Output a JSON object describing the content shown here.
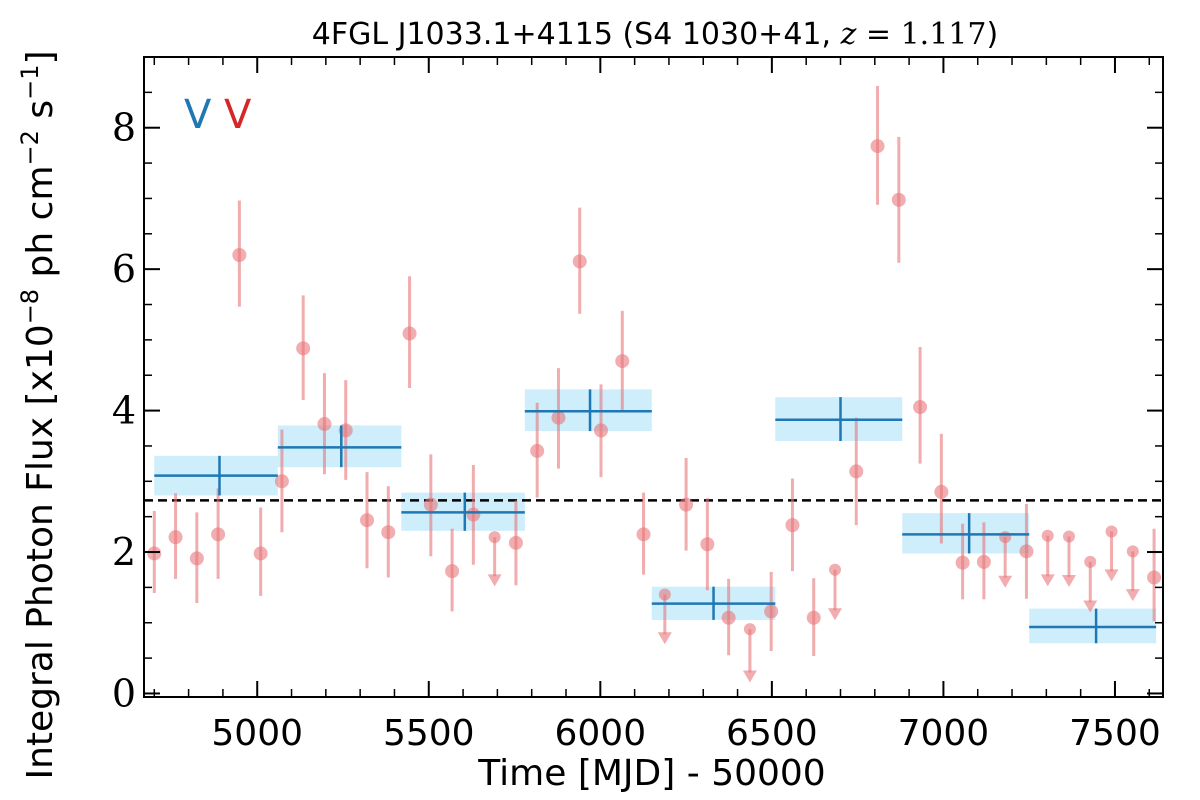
{
  "chart_data": {
    "type": "scatter",
    "title": {
      "prefix": "4FGL J1033.1+4115 (S4 1030+41, ",
      "z_symbol": "z",
      "equals": " = ",
      "z_value": "1.117",
      "suffix": ")"
    },
    "xlabel": "Time [MJD] - 50000",
    "ylabel": {
      "main": "Integral Photon Flux [x10",
      "exp1": "−8",
      "mid": " ph cm",
      "exp2": "−2",
      "unit": " s",
      "exp3": "−1",
      "end": "]"
    },
    "xlim": [
      4670,
      7640
    ],
    "ylim": [
      -0.05,
      9.0
    ],
    "xticks": [
      5000,
      5500,
      6000,
      6500,
      7000,
      7500
    ],
    "xtick_labels": [
      "5000",
      "5500",
      "6000",
      "6500",
      "7000",
      "7500"
    ],
    "yticks": [
      0,
      2,
      4,
      6,
      8
    ],
    "ytick_labels": [
      "0",
      "2",
      "4",
      "6",
      "8"
    ],
    "reference_line": {
      "y": 2.73,
      "style": "dashed"
    },
    "markers": [
      {
        "label": "V",
        "color": "#1f77b4"
      },
      {
        "label": "V",
        "color": "#d62728"
      }
    ],
    "colors": {
      "short_bins": "#e8767a",
      "long_bins": "#1f77b4",
      "long_band": "#c8ecfa",
      "reference": "#000000"
    },
    "series": [
      {
        "role": "short_bins_detections",
        "points": [
          {
            "x": 4700,
            "y": 1.98,
            "lo": 1.42,
            "hi": 2.58
          },
          {
            "x": 4762,
            "y": 2.21,
            "lo": 1.62,
            "hi": 2.83
          },
          {
            "x": 4824,
            "y": 1.91,
            "lo": 1.28,
            "hi": 2.56
          },
          {
            "x": 4886,
            "y": 2.25,
            "lo": 1.62,
            "hi": 2.9
          },
          {
            "x": 4948,
            "y": 6.2,
            "lo": 5.47,
            "hi": 6.97
          },
          {
            "x": 5010,
            "y": 1.98,
            "lo": 1.38,
            "hi": 2.63
          },
          {
            "x": 5072,
            "y": 3.0,
            "lo": 2.28,
            "hi": 3.73
          },
          {
            "x": 5134,
            "y": 4.88,
            "lo": 4.15,
            "hi": 5.63
          },
          {
            "x": 5196,
            "y": 3.81,
            "lo": 3.1,
            "hi": 4.53
          },
          {
            "x": 5258,
            "y": 3.72,
            "lo": 3.02,
            "hi": 4.43
          },
          {
            "x": 5320,
            "y": 2.45,
            "lo": 1.77,
            "hi": 3.13
          },
          {
            "x": 5382,
            "y": 2.28,
            "lo": 1.64,
            "hi": 2.93
          },
          {
            "x": 5444,
            "y": 5.09,
            "lo": 4.32,
            "hi": 5.9
          },
          {
            "x": 5506,
            "y": 2.67,
            "lo": 1.94,
            "hi": 3.38
          },
          {
            "x": 5568,
            "y": 1.73,
            "lo": 1.16,
            "hi": 2.33
          },
          {
            "x": 5630,
            "y": 2.53,
            "lo": 1.82,
            "hi": 3.23
          },
          {
            "x": 5754,
            "y": 2.13,
            "lo": 1.53,
            "hi": 2.73
          },
          {
            "x": 5816,
            "y": 3.43,
            "lo": 2.77,
            "hi": 4.11
          },
          {
            "x": 5878,
            "y": 3.9,
            "lo": 3.18,
            "hi": 4.6
          },
          {
            "x": 5940,
            "y": 6.11,
            "lo": 5.37,
            "hi": 6.87
          },
          {
            "x": 6002,
            "y": 3.72,
            "lo": 3.06,
            "hi": 4.37
          },
          {
            "x": 6064,
            "y": 4.7,
            "lo": 4.01,
            "hi": 5.41
          },
          {
            "x": 6126,
            "y": 2.25,
            "lo": 1.68,
            "hi": 2.84
          },
          {
            "x": 6250,
            "y": 2.67,
            "lo": 2.02,
            "hi": 3.33
          },
          {
            "x": 6312,
            "y": 2.11,
            "lo": 1.46,
            "hi": 2.76
          },
          {
            "x": 6374,
            "y": 1.07,
            "lo": 0.54,
            "hi": 1.62
          },
          {
            "x": 6498,
            "y": 1.16,
            "lo": 0.6,
            "hi": 1.72
          },
          {
            "x": 6560,
            "y": 2.38,
            "lo": 1.73,
            "hi": 3.04
          },
          {
            "x": 6622,
            "y": 1.07,
            "lo": 0.53,
            "hi": 1.63
          },
          {
            "x": 6746,
            "y": 3.14,
            "lo": 2.38,
            "hi": 3.9
          },
          {
            "x": 6808,
            "y": 7.74,
            "lo": 6.91,
            "hi": 8.59
          },
          {
            "x": 6870,
            "y": 6.98,
            "lo": 6.09,
            "hi": 7.87
          },
          {
            "x": 6932,
            "y": 4.05,
            "lo": 3.25,
            "hi": 4.9
          },
          {
            "x": 6994,
            "y": 2.85,
            "lo": 2.12,
            "hi": 3.67
          },
          {
            "x": 7056,
            "y": 1.85,
            "lo": 1.33,
            "hi": 2.4
          },
          {
            "x": 7118,
            "y": 1.86,
            "lo": 1.33,
            "hi": 2.42
          },
          {
            "x": 7242,
            "y": 2.01,
            "lo": 1.34,
            "hi": 2.68
          },
          {
            "x": 7614,
            "y": 1.64,
            "lo": 1.02,
            "hi": 2.33
          }
        ]
      },
      {
        "role": "short_bins_upper_limits",
        "points": [
          {
            "x": 5692,
            "y": 2.21,
            "arrow_to": 1.6
          },
          {
            "x": 6188,
            "y": 1.4,
            "arrow_to": 0.78
          },
          {
            "x": 6436,
            "y": 0.91,
            "arrow_to": 0.24
          },
          {
            "x": 6684,
            "y": 1.75,
            "arrow_to": 1.12
          },
          {
            "x": 7180,
            "y": 2.21,
            "arrow_to": 1.58
          },
          {
            "x": 7304,
            "y": 2.23,
            "arrow_to": 1.6
          },
          {
            "x": 7366,
            "y": 2.22,
            "arrow_to": 1.59
          },
          {
            "x": 7428,
            "y": 1.86,
            "arrow_to": 1.23
          },
          {
            "x": 7490,
            "y": 2.29,
            "arrow_to": 1.67
          },
          {
            "x": 7552,
            "y": 2.01,
            "arrow_to": 1.39
          }
        ]
      },
      {
        "role": "long_bins",
        "points": [
          {
            "x0": 4700,
            "x1": 5060,
            "xc": 4890,
            "y": 3.08,
            "ylo": 2.8,
            "yhi": 3.36
          },
          {
            "x0": 5060,
            "x1": 5420,
            "xc": 5245,
            "y": 3.48,
            "ylo": 3.2,
            "yhi": 3.79
          },
          {
            "x0": 5420,
            "x1": 5780,
            "xc": 5605,
            "y": 2.56,
            "ylo": 2.3,
            "yhi": 2.84
          },
          {
            "x0": 5780,
            "x1": 6150,
            "xc": 5970,
            "y": 3.99,
            "ylo": 3.71,
            "yhi": 4.3
          },
          {
            "x0": 6150,
            "x1": 6510,
            "xc": 6330,
            "y": 1.27,
            "ylo": 1.04,
            "yhi": 1.51
          },
          {
            "x0": 6510,
            "x1": 6880,
            "xc": 6700,
            "y": 3.87,
            "ylo": 3.57,
            "yhi": 4.19
          },
          {
            "x0": 6880,
            "x1": 7250,
            "xc": 7075,
            "y": 2.25,
            "ylo": 1.98,
            "yhi": 2.55
          },
          {
            "x0": 7250,
            "x1": 7620,
            "xc": 7445,
            "y": 0.94,
            "ylo": 0.71,
            "yhi": 1.2
          }
        ]
      }
    ]
  }
}
